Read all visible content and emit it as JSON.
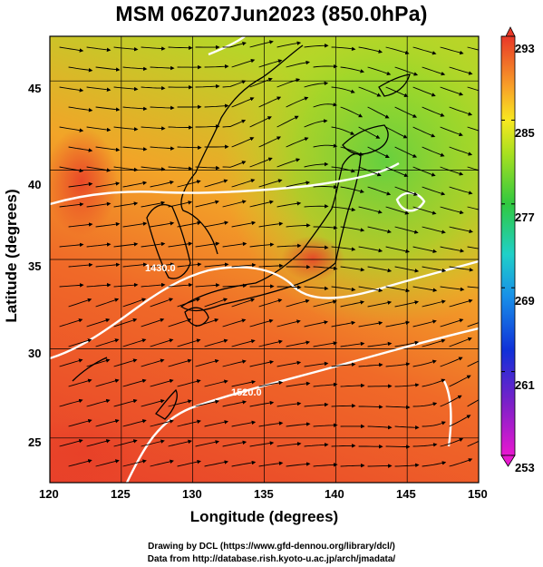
{
  "title": "MSM 06Z07Jun2023 (850.0hPa)",
  "x_axis": {
    "label": "Longitude (degrees)",
    "ticks": [
      "120",
      "125",
      "130",
      "135",
      "140",
      "145",
      "150"
    ],
    "range": [
      120,
      150
    ]
  },
  "y_axis": {
    "label": "Latitude  (degrees)",
    "ticks": [
      "25",
      "30",
      "35",
      "40",
      "45"
    ],
    "range": [
      22.5,
      47.5
    ]
  },
  "colorbar": {
    "min": 253,
    "max": 293,
    "ticks": [
      "293",
      "285",
      "277",
      "269",
      "261",
      "253"
    ]
  },
  "contour_labels": [
    "1430.0",
    "1520.0"
  ],
  "footer": {
    "line1": "Drawing by DCL (https://www.gfd-dennou.org/library/dcl/)",
    "line2": "Data from http://database.rish.kyoto-u.ac.jp/arch/jmadata/"
  },
  "colors": {
    "warm": "#e83a2a",
    "mid": "#f0a020",
    "cool": "#8ed02a",
    "contour": "#ffffff"
  }
}
